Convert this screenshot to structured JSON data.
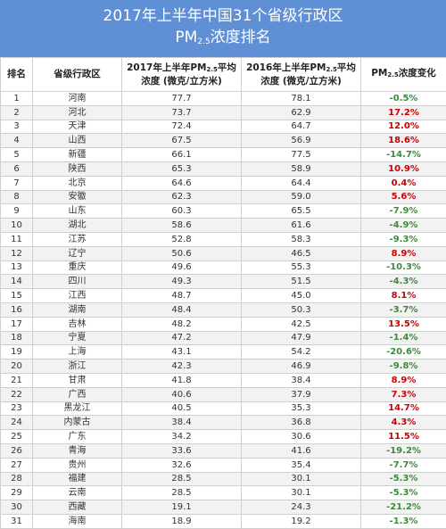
{
  "title": {
    "line1": "2017年上半年中国31个省级行政区",
    "line2_prefix": "PM",
    "line2_sub": "2.5",
    "line2_suffix": "浓度排名"
  },
  "headers": {
    "rank": "排名",
    "province": "省级行政区",
    "h2017_pre": "2017年上半年PM",
    "h2017_sub": "2.5",
    "h2017_post": "平均",
    "h2017_unit": "浓度 (微克/立方米)",
    "h2016_pre": "2016年上半年PM",
    "h2016_sub": "2.5",
    "h2016_post": "平均",
    "h2016_unit": "浓度 (微克/立方米)",
    "change_pre": "PM",
    "change_sub": "2.5",
    "change_post": "浓度变化"
  },
  "rows": [
    {
      "rank": "1",
      "province": "河南",
      "v2017": "77.7",
      "v2016": "78.1",
      "change": "-0.5%"
    },
    {
      "rank": "2",
      "province": "河北",
      "v2017": "73.7",
      "v2016": "62.9",
      "change": "17.2%"
    },
    {
      "rank": "3",
      "province": "天津",
      "v2017": "72.4",
      "v2016": "64.7",
      "change": "12.0%"
    },
    {
      "rank": "4",
      "province": "山西",
      "v2017": "67.5",
      "v2016": "56.9",
      "change": "18.6%"
    },
    {
      "rank": "5",
      "province": "新疆",
      "v2017": "66.1",
      "v2016": "77.5",
      "change": "-14.7%"
    },
    {
      "rank": "6",
      "province": "陕西",
      "v2017": "65.3",
      "v2016": "58.9",
      "change": "10.9%"
    },
    {
      "rank": "7",
      "province": "北京",
      "v2017": "64.6",
      "v2016": "64.4",
      "change": "0.4%"
    },
    {
      "rank": "8",
      "province": "安徽",
      "v2017": "62.3",
      "v2016": "59.0",
      "change": "5.6%"
    },
    {
      "rank": "9",
      "province": "山东",
      "v2017": "60.3",
      "v2016": "65.5",
      "change": "-7.9%"
    },
    {
      "rank": "10",
      "province": "湖北",
      "v2017": "58.6",
      "v2016": "61.6",
      "change": "-4.9%"
    },
    {
      "rank": "11",
      "province": "江苏",
      "v2017": "52.8",
      "v2016": "58.3",
      "change": "-9.3%"
    },
    {
      "rank": "12",
      "province": "辽宁",
      "v2017": "50.6",
      "v2016": "46.5",
      "change": "8.9%"
    },
    {
      "rank": "13",
      "province": "重庆",
      "v2017": "49.6",
      "v2016": "55.3",
      "change": "-10.3%"
    },
    {
      "rank": "14",
      "province": "四川",
      "v2017": "49.3",
      "v2016": "51.5",
      "change": "-4.3%"
    },
    {
      "rank": "15",
      "province": "江西",
      "v2017": "48.7",
      "v2016": "45.0",
      "change": "8.1%"
    },
    {
      "rank": "16",
      "province": "湖南",
      "v2017": "48.4",
      "v2016": "50.3",
      "change": "-3.7%"
    },
    {
      "rank": "17",
      "province": "吉林",
      "v2017": "48.2",
      "v2016": "42.5",
      "change": "13.5%"
    },
    {
      "rank": "18",
      "province": "宁夏",
      "v2017": "47.2",
      "v2016": "47.9",
      "change": "-1.4%"
    },
    {
      "rank": "19",
      "province": "上海",
      "v2017": "43.1",
      "v2016": "54.2",
      "change": "-20.6%"
    },
    {
      "rank": "20",
      "province": "浙江",
      "v2017": "42.3",
      "v2016": "46.9",
      "change": "-9.8%"
    },
    {
      "rank": "21",
      "province": "甘肃",
      "v2017": "41.8",
      "v2016": "38.4",
      "change": "8.9%"
    },
    {
      "rank": "22",
      "province": "广西",
      "v2017": "40.6",
      "v2016": "37.9",
      "change": "7.3%"
    },
    {
      "rank": "23",
      "province": "黑龙江",
      "v2017": "40.5",
      "v2016": "35.3",
      "change": "14.7%"
    },
    {
      "rank": "24",
      "province": "内蒙古",
      "v2017": "38.4",
      "v2016": "36.8",
      "change": "4.3%"
    },
    {
      "rank": "25",
      "province": "广东",
      "v2017": "34.2",
      "v2016": "30.6",
      "change": "11.5%"
    },
    {
      "rank": "26",
      "province": "青海",
      "v2017": "33.6",
      "v2016": "41.6",
      "change": "-19.2%"
    },
    {
      "rank": "27",
      "province": "贵州",
      "v2017": "32.6",
      "v2016": "35.4",
      "change": "-7.7%"
    },
    {
      "rank": "28",
      "province": "福建",
      "v2017": "28.5",
      "v2016": "30.1",
      "change": "-5.3%"
    },
    {
      "rank": "29",
      "province": "云南",
      "v2017": "28.5",
      "v2016": "30.1",
      "change": "-5.3%"
    },
    {
      "rank": "30",
      "province": "西藏",
      "v2017": "19.1",
      "v2016": "24.3",
      "change": "-21.2%"
    },
    {
      "rank": "31",
      "province": "海南",
      "v2017": "18.9",
      "v2016": "19.2",
      "change": "-1.3%"
    }
  ],
  "colors": {
    "title_bg": "#5f8fd4",
    "increase": "#cc0000",
    "decrease": "#3c8a3c"
  }
}
